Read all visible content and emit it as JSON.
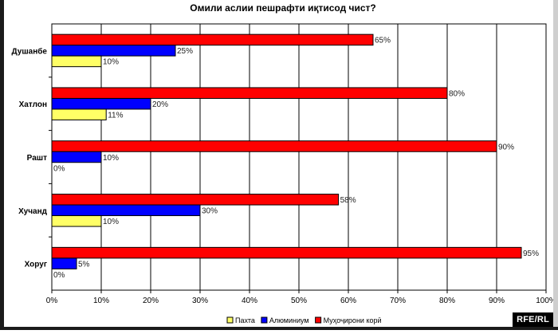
{
  "chart_data": {
    "type": "bar",
    "orientation": "horizontal",
    "title": "Омили аслии пешрафти иқтисод чист?",
    "categories": [
      "Душанбе",
      "Хатлон",
      "Рашт",
      "Хучанд",
      "Хоруг"
    ],
    "series": [
      {
        "name": "Муҳоҷирони корӣ",
        "color": "#ff0000",
        "values": [
          65,
          80,
          90,
          58,
          95
        ]
      },
      {
        "name": "Алюминиум",
        "color": "#0000ff",
        "values": [
          25,
          20,
          10,
          30,
          5
        ]
      },
      {
        "name": "Пахта",
        "color": "#ffff66",
        "values": [
          10,
          11,
          0,
          10,
          0
        ]
      }
    ],
    "xlim": [
      0,
      100
    ],
    "x_ticks": [
      0,
      10,
      20,
      30,
      40,
      50,
      60,
      70,
      80,
      90,
      100
    ],
    "value_suffix": "%",
    "grid": true,
    "legend": {
      "position": "bottom",
      "order": [
        "Пахта",
        "Алюминиум",
        "Муҳоҷирони корӣ"
      ]
    },
    "xlabel": "",
    "ylabel": ""
  },
  "watermark": "RFE/RL"
}
